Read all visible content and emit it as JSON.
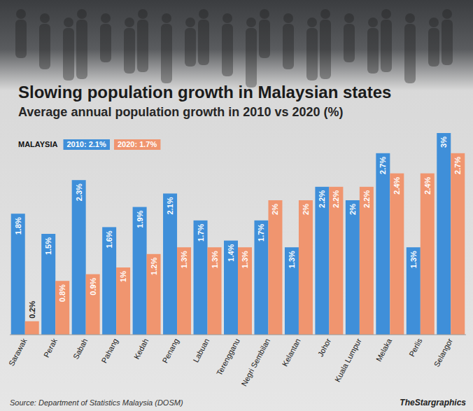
{
  "chart_data": {
    "type": "bar",
    "title": "Slowing population growth in Malaysian states",
    "subtitle": "Average annual population growth in 2010 vs 2020 (%)",
    "annotations": [
      "MALAYSIA",
      "Source: Department of Statistics Malaysia (DOSM)",
      "TheStargraphics"
    ],
    "categories": [
      "Sarawak",
      "Perak",
      "Sabah",
      "Pahang",
      "Kedah",
      "Penang",
      "Labuan",
      "Terengganu",
      "Negri Sembilan",
      "Kelantan",
      "Johor",
      "Kuala Lumpur",
      "Melaka",
      "Perlis",
      "Selangor"
    ],
    "series": [
      {
        "name": "2010: 2.1%",
        "color": "#3f8fd9",
        "values": [
          1.8,
          1.5,
          2.3,
          1.6,
          1.9,
          2.1,
          1.7,
          1.4,
          1.7,
          1.3,
          2.2,
          2,
          2.7,
          1.3,
          3
        ],
        "value_labels": [
          "1.8%",
          "1.5%",
          "2.3%",
          "1.6%",
          "1.9%",
          "2.1%",
          "1.7%",
          "1.4%",
          "1.7%",
          "1.3%",
          "2.2%",
          "2%",
          "2.7%",
          "1.3%",
          "3%"
        ]
      },
      {
        "name": "2020: 1.7%",
        "color": "#f0956f",
        "values": [
          0.2,
          0.8,
          0.9,
          1,
          1.2,
          1.3,
          1.3,
          1.3,
          2,
          2,
          2.2,
          2.2,
          2.4,
          2.4,
          2.7
        ],
        "value_labels": [
          "0.2%",
          "0.8%",
          "0.9%",
          "1%",
          "1.2%",
          "1.3%",
          "1.3%",
          "1.3%",
          "2%",
          "2%",
          "2.2%",
          "2.2%",
          "2.4%",
          "2.4%",
          "2.7%"
        ]
      }
    ],
    "ylim": [
      0,
      3
    ],
    "grid": false,
    "legend": "top-left",
    "data_labels": true,
    "tick_labels": "x"
  }
}
